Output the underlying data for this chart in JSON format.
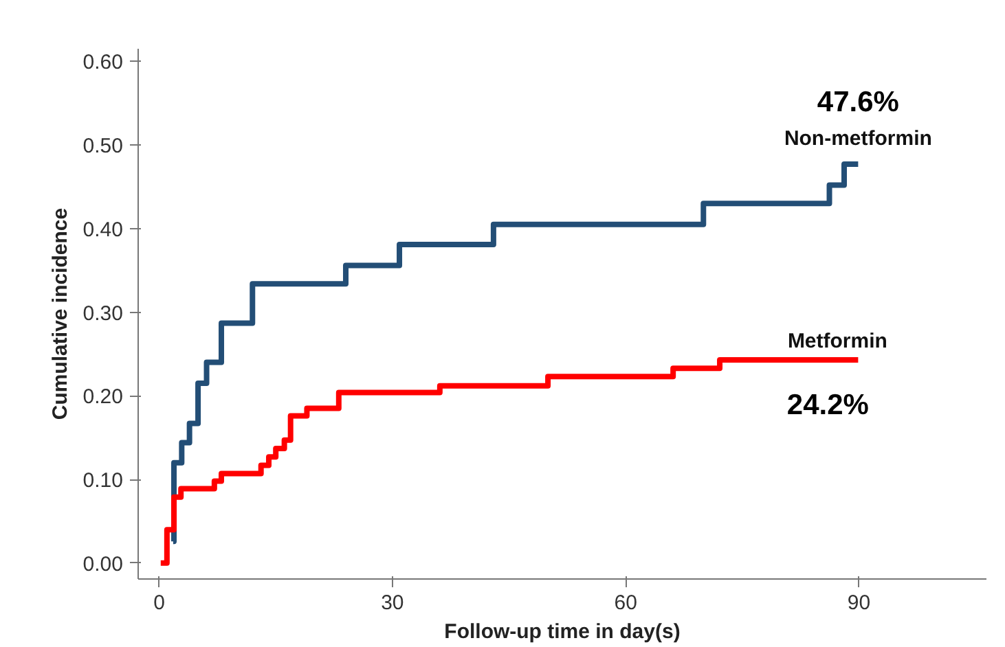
{
  "chart_data": {
    "type": "step",
    "xlabel": "Follow-up time in day(s)",
    "ylabel": "Cumulative incidence",
    "xlim": [
      -2.7,
      106.4
    ],
    "ylim": [
      -0.019,
      0.615
    ],
    "xticks": [
      0,
      30,
      60,
      90
    ],
    "yticks": [
      {
        "value": 0,
        "label": "0.00"
      },
      {
        "value": 0.1,
        "label": "0.10"
      },
      {
        "value": 0.2,
        "label": "0.20"
      },
      {
        "value": 0.3,
        "label": "0.30"
      },
      {
        "value": 0.4,
        "label": "0.40"
      },
      {
        "value": 0.5,
        "label": "0.50"
      },
      {
        "value": 0.6,
        "label": "0.60"
      }
    ],
    "grid": false,
    "legend": false,
    "marker": "none",
    "line_style": "solid",
    "series": [
      {
        "name": "Non-metformin",
        "color": "#234e76",
        "x": [
          1.8,
          1.9,
          2.9,
          3.9,
          5.0,
          6.1,
          8.0,
          12.0,
          24.0,
          30.9,
          43.0,
          70.0,
          86.2,
          88.1,
          89.9
        ],
        "values": [
          0.026,
          0.12,
          0.144,
          0.167,
          0.215,
          0.24,
          0.287,
          0.334,
          0.356,
          0.381,
          0.405,
          0.43,
          0.452,
          0.477,
          0.477
        ]
      },
      {
        "name": "Metformin",
        "color": "#ff0000",
        "x": [
          0.2,
          1.0,
          1.9,
          2.8,
          7.1,
          8.0,
          13.1,
          14.1,
          15.0,
          16.1,
          16.9,
          19.0,
          23.1,
          36.1,
          50.0,
          66.1,
          72.1,
          89.9
        ],
        "values": [
          0,
          0.04,
          0.079,
          0.089,
          0.098,
          0.107,
          0.117,
          0.127,
          0.137,
          0.147,
          0.176,
          0.185,
          0.204,
          0.212,
          0.223,
          0.233,
          0.243,
          0.243
        ]
      }
    ],
    "annotations": [
      "47.6%",
      "24.2%"
    ]
  }
}
